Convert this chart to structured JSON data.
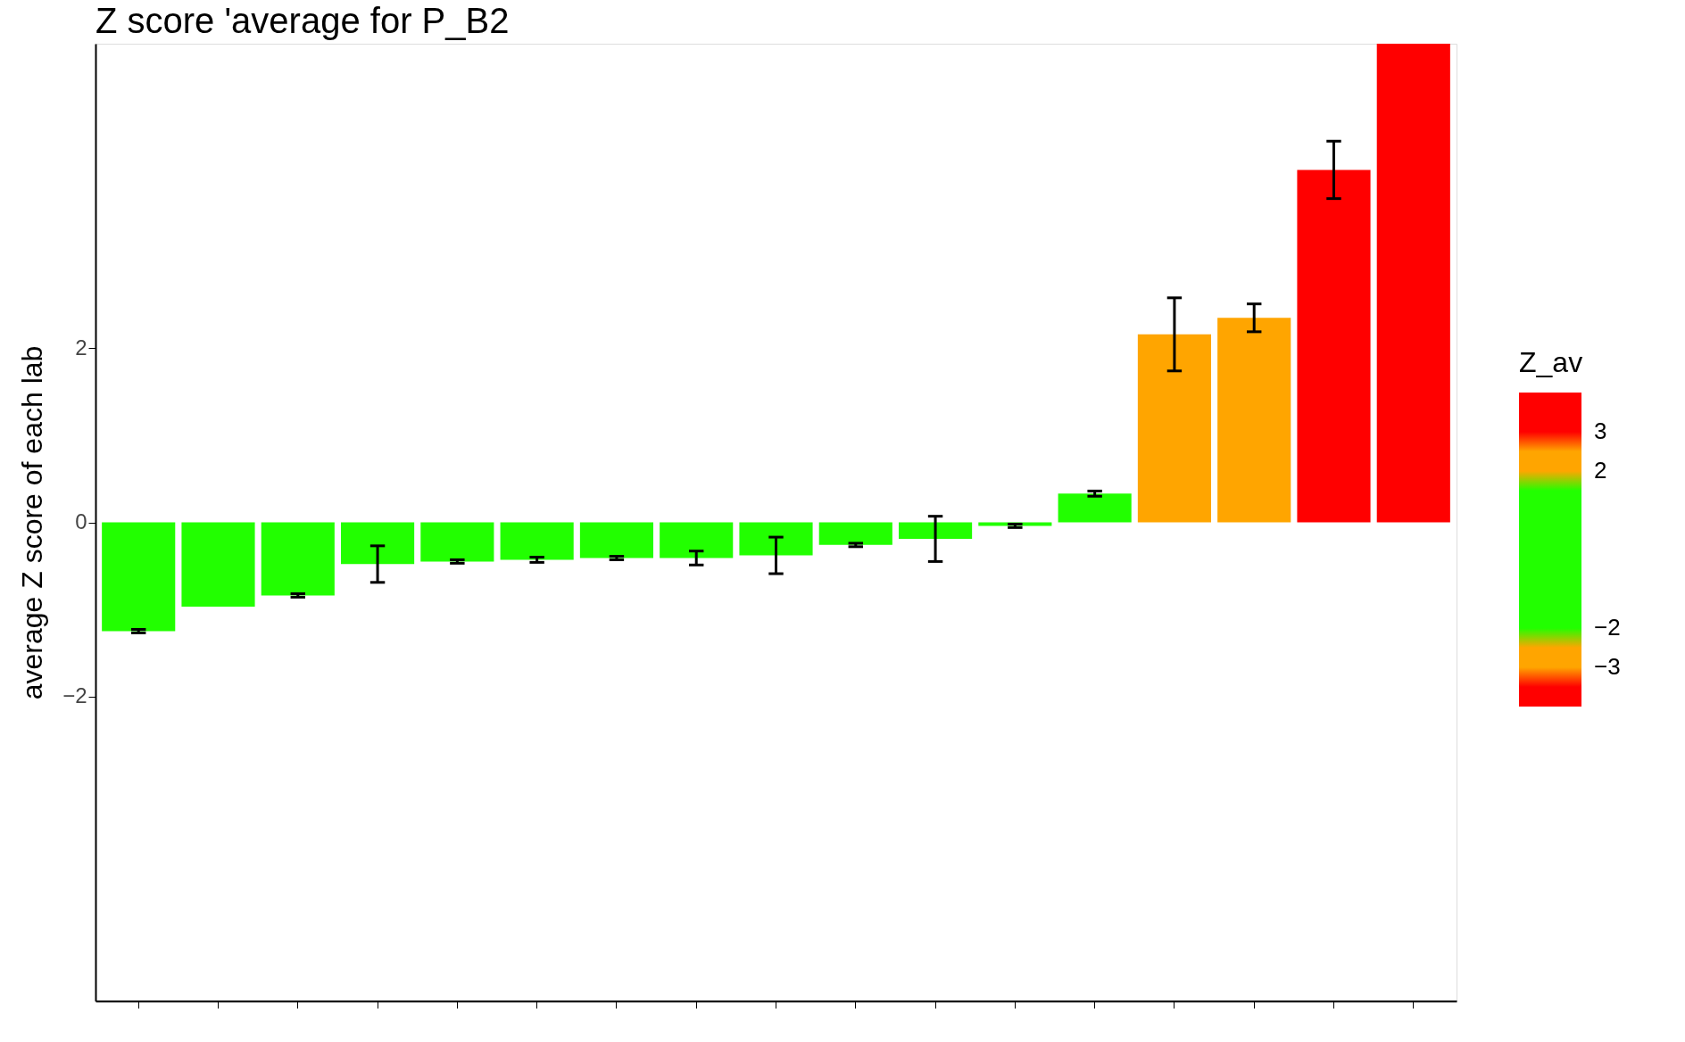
{
  "chart_data": {
    "type": "bar",
    "title": "Z score 'average for P_B2",
    "ylabel": "average Z score of each lab",
    "clabel": "Z_av",
    "clim": [
      -4,
      4
    ],
    "cticks": [
      -3,
      -2,
      2,
      3
    ],
    "categories": [
      null,
      null,
      null,
      null,
      null,
      null,
      null,
      null,
      null,
      null,
      null,
      null,
      null,
      null,
      null,
      null,
      null
    ],
    "values": [
      -1.25,
      -0.97,
      -0.84,
      -0.48,
      -0.45,
      -0.43,
      -0.41,
      -0.41,
      -0.38,
      -0.26,
      -0.19,
      -0.04,
      0.33,
      2.16,
      2.35,
      4.05,
      5.5
    ],
    "errors": [
      0.02,
      null,
      0.02,
      0.21,
      0.02,
      0.03,
      0.02,
      0.08,
      0.21,
      0.02,
      0.26,
      0.02,
      0.03,
      0.42,
      0.16,
      0.33,
      null
    ],
    "colors": [
      "#22ff00",
      "#22ff00",
      "#22ff00",
      "#22ff00",
      "#22ff00",
      "#22ff00",
      "#22ff00",
      "#22ff00",
      "#22ff00",
      "#22ff00",
      "#22ff00",
      "#22ff00",
      "#22ff00",
      "#ffa500",
      "#ffa500",
      "#ff0000",
      "#ff0000"
    ],
    "ylim": [
      -5.5,
      5.5
    ],
    "yticks": [
      -2,
      0,
      2
    ],
    "grid": false
  }
}
